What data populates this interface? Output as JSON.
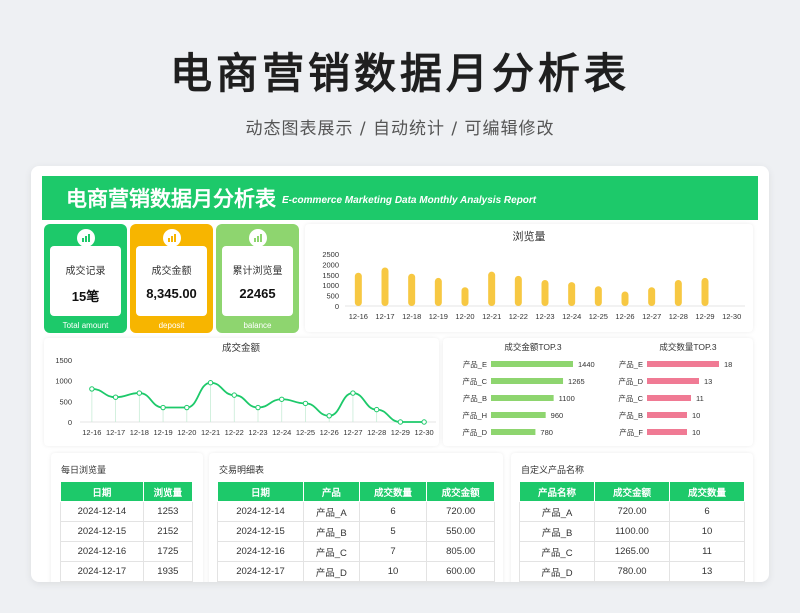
{
  "page": {
    "title": "电商营销数据月分析表",
    "subtitle": "动态图表展示 / 自动统计 / 可编辑修改"
  },
  "banner": {
    "title": "电商营销数据月分析表",
    "subtitle_en": "E-commerce Marketing Data Monthly Analysis Report"
  },
  "colors": {
    "green": "#1dc96a",
    "orange": "#f7b500",
    "lightgreen": "#8ed56f",
    "bar_yellow": "#f7c842",
    "bar_green": "#8ed56f",
    "bar_pink": "#f07a94",
    "line_green": "#1dc96a"
  },
  "kpis": [
    {
      "label": "成交记录",
      "value": "15笔",
      "footer": "Total amount",
      "icon": "chart-icon",
      "color": "#1dc96a"
    },
    {
      "label": "成交金额",
      "value": "8,345.00",
      "footer": "deposit",
      "icon": "chart-icon",
      "color": "#f7b500"
    },
    {
      "label": "累计浏览量",
      "value": "22465",
      "footer": "balance",
      "icon": "chart-icon",
      "color": "#8ed56f"
    }
  ],
  "chart_data": [
    {
      "type": "bar",
      "title": "浏览量",
      "categories": [
        "12-16",
        "12-17",
        "12-18",
        "12-19",
        "12-20",
        "12-21",
        "12-22",
        "12-23",
        "12-24",
        "12-25",
        "12-26",
        "12-27",
        "12-28",
        "12-29",
        "12-30"
      ],
      "values": [
        1600,
        1850,
        1550,
        1350,
        900,
        1650,
        1450,
        1250,
        1150,
        950,
        700,
        900,
        1250,
        1350,
        0
      ],
      "yticks": [
        "2500",
        "2000",
        "1500",
        "1000",
        "500",
        "0"
      ],
      "ylim": [
        0,
        2500
      ]
    },
    {
      "type": "line",
      "title": "成交金额",
      "categories": [
        "12-16",
        "12-17",
        "12-18",
        "12-19",
        "12-20",
        "12-21",
        "12-22",
        "12-23",
        "12-24",
        "12-25",
        "12-26",
        "12-27",
        "12-28",
        "12-29",
        "12-30"
      ],
      "values": [
        800,
        600,
        700,
        350,
        350,
        950,
        650,
        350,
        550,
        450,
        150,
        700,
        300,
        0,
        0
      ],
      "yticks": [
        "1500",
        "1000",
        "500",
        "0"
      ],
      "ylim": [
        0,
        1500
      ]
    },
    {
      "type": "bar",
      "title": "成交金额TOP.3",
      "orientation": "horizontal",
      "categories": [
        "产品_E",
        "产品_C",
        "产品_B",
        "产品_H",
        "产品_D"
      ],
      "values": [
        1440,
        1265,
        1100,
        960,
        780
      ],
      "labels": [
        "1440",
        "1265",
        "1100",
        "960",
        "780"
      ]
    },
    {
      "type": "bar",
      "title": "成交数量TOP.3",
      "orientation": "horizontal",
      "categories": [
        "产品_E",
        "产品_D",
        "产品_C",
        "产品_B",
        "产品_F"
      ],
      "values": [
        18,
        13,
        11,
        10,
        10
      ],
      "labels": [
        "18",
        "13",
        "11",
        "10",
        "10"
      ]
    }
  ],
  "daily_views": {
    "title": "每日浏览量",
    "headers": [
      "日期",
      "浏览量"
    ],
    "rows": [
      [
        "2024-12-14",
        "1253"
      ],
      [
        "2024-12-15",
        "2152"
      ],
      [
        "2024-12-16",
        "1725"
      ],
      [
        "2024-12-17",
        "1935"
      ]
    ]
  },
  "transactions": {
    "title": "交易明细表",
    "headers": [
      "日期",
      "产品",
      "成交数量",
      "成交金额"
    ],
    "rows": [
      [
        "2024-12-14",
        "产品_A",
        "6",
        "720.00"
      ],
      [
        "2024-12-15",
        "产品_B",
        "5",
        "550.00"
      ],
      [
        "2024-12-16",
        "产品_C",
        "7",
        "805.00"
      ],
      [
        "2024-12-17",
        "产品_D",
        "10",
        "600.00"
      ]
    ]
  },
  "custom_products": {
    "title": "自定义产品名称",
    "headers": [
      "产品名称",
      "成交金额",
      "成交数量"
    ],
    "rows": [
      [
        "产品_A",
        "720.00",
        "6"
      ],
      [
        "产品_B",
        "1100.00",
        "10"
      ],
      [
        "产品_C",
        "1265.00",
        "11"
      ],
      [
        "产品_D",
        "780.00",
        "13"
      ]
    ]
  }
}
